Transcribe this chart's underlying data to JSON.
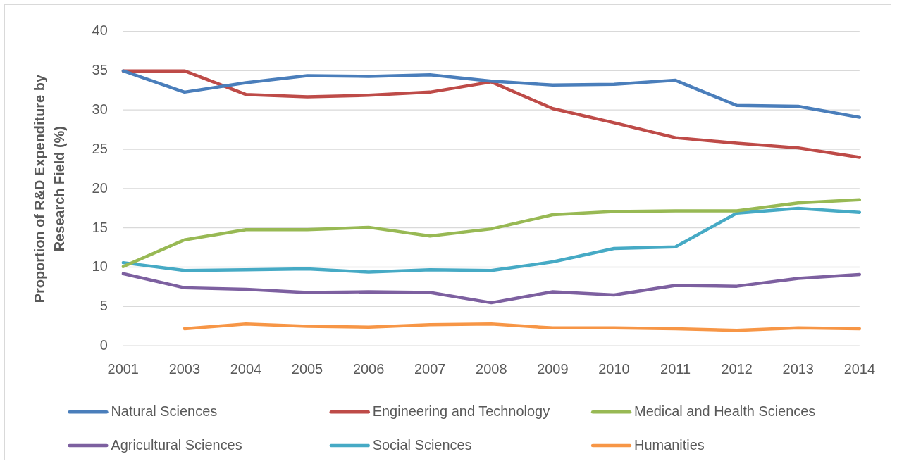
{
  "chart_data": {
    "type": "line",
    "ylabel": "Proportion of R&D Expenditure by Research Field (%)",
    "categories": [
      "2001",
      "2003",
      "2004",
      "2005",
      "2006",
      "2007",
      "2008",
      "2009",
      "2010",
      "2011",
      "2012",
      "2013",
      "2014"
    ],
    "series": [
      {
        "name": "Natural Sciences",
        "color": "#4a7ebb",
        "values": [
          35.0,
          32.3,
          33.5,
          34.4,
          34.3,
          34.5,
          33.7,
          33.2,
          33.3,
          33.8,
          30.6,
          30.5,
          29.1
        ]
      },
      {
        "name": "Engineering and Technology",
        "color": "#be4b48",
        "values": [
          35.0,
          35.0,
          32.0,
          31.7,
          31.9,
          32.3,
          33.6,
          30.2,
          28.4,
          26.5,
          25.8,
          25.2,
          24.0
        ]
      },
      {
        "name": "Medical and Health Sciences",
        "color": "#98b954",
        "values": [
          10.1,
          13.5,
          14.8,
          14.8,
          15.1,
          14.0,
          14.9,
          16.7,
          17.1,
          17.2,
          17.2,
          18.2,
          18.6
        ]
      },
      {
        "name": "Agricultural Sciences",
        "color": "#7d60a0",
        "values": [
          9.2,
          7.4,
          7.2,
          6.8,
          6.9,
          6.8,
          5.5,
          6.9,
          6.5,
          7.7,
          7.6,
          8.6,
          9.1
        ]
      },
      {
        "name": "Social Sciences",
        "color": "#46aac5",
        "values": [
          10.6,
          9.6,
          9.7,
          9.8,
          9.4,
          9.7,
          9.6,
          10.7,
          12.4,
          12.6,
          16.9,
          17.5,
          17.0
        ]
      },
      {
        "name": "Humanities",
        "color": "#f79646",
        "values": [
          null,
          2.2,
          2.8,
          2.5,
          2.4,
          2.7,
          2.8,
          2.3,
          2.3,
          2.2,
          2.0,
          2.3,
          2.2
        ]
      }
    ],
    "ylim": [
      0,
      40
    ],
    "yticks": [
      0,
      5,
      10,
      15,
      20,
      25,
      30,
      35,
      40
    ],
    "grid": "y",
    "legend": "bottom"
  }
}
